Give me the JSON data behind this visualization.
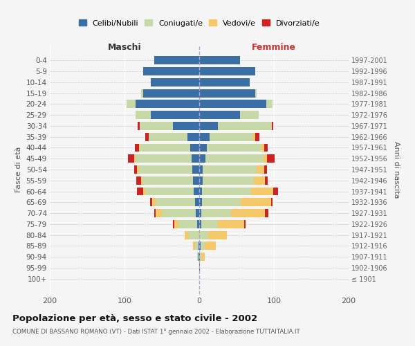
{
  "age_groups": [
    "100+",
    "95-99",
    "90-94",
    "85-89",
    "80-84",
    "75-79",
    "70-74",
    "65-69",
    "60-64",
    "55-59",
    "50-54",
    "45-49",
    "40-44",
    "35-39",
    "30-34",
    "25-29",
    "20-24",
    "15-19",
    "10-14",
    "5-9",
    "0-4"
  ],
  "birth_years": [
    "≤ 1901",
    "1902-1906",
    "1907-1911",
    "1912-1916",
    "1917-1921",
    "1922-1926",
    "1927-1931",
    "1932-1936",
    "1937-1941",
    "1942-1946",
    "1947-1951",
    "1952-1956",
    "1957-1961",
    "1962-1966",
    "1967-1971",
    "1972-1976",
    "1977-1981",
    "1982-1986",
    "1987-1991",
    "1992-1996",
    "1997-2001"
  ],
  "male": {
    "celibi": [
      0,
      0,
      1,
      1,
      0,
      3,
      5,
      6,
      7,
      8,
      9,
      10,
      12,
      16,
      35,
      65,
      85,
      75,
      65,
      75,
      60
    ],
    "coniugati": [
      0,
      0,
      2,
      5,
      14,
      25,
      45,
      52,
      65,
      68,
      72,
      75,
      68,
      52,
      45,
      20,
      12,
      3,
      0,
      0,
      0
    ],
    "vedovi": [
      0,
      0,
      0,
      2,
      5,
      5,
      8,
      5,
      3,
      2,
      2,
      2,
      1,
      0,
      0,
      0,
      0,
      0,
      0,
      0,
      0
    ],
    "divorziati": [
      0,
      0,
      0,
      0,
      0,
      2,
      2,
      3,
      8,
      6,
      4,
      8,
      5,
      4,
      2,
      0,
      0,
      0,
      0,
      0,
      0
    ]
  },
  "female": {
    "nubili": [
      0,
      1,
      1,
      2,
      0,
      3,
      3,
      4,
      4,
      5,
      5,
      8,
      10,
      14,
      25,
      55,
      90,
      75,
      68,
      75,
      55
    ],
    "coniugate": [
      0,
      0,
      2,
      5,
      12,
      22,
      40,
      52,
      65,
      68,
      72,
      78,
      72,
      58,
      72,
      25,
      8,
      2,
      0,
      0,
      0
    ],
    "vedove": [
      0,
      0,
      4,
      15,
      25,
      35,
      45,
      40,
      30,
      15,
      10,
      5,
      5,
      3,
      0,
      0,
      0,
      0,
      0,
      0,
      0
    ],
    "divorziate": [
      0,
      0,
      0,
      0,
      0,
      2,
      5,
      2,
      7,
      4,
      4,
      10,
      5,
      6,
      2,
      0,
      0,
      0,
      0,
      0,
      0
    ]
  },
  "colors": {
    "celibi": "#3a6ea5",
    "coniugati": "#c8d9a8",
    "vedovi": "#f5c96a",
    "divorziati": "#cc2222"
  },
  "xlim": 200,
  "title": "Popolazione per età, sesso e stato civile - 2002",
  "subtitle": "COMUNE DI BASSANO ROMANO (VT) - Dati ISTAT 1° gennaio 2002 - Elaborazione TUTTAITALIA.IT",
  "ylabel": "Fasce di età",
  "ylabel_right": "Anni di nascita",
  "xlabel_maschi": "Maschi",
  "xlabel_femmine": "Femmine",
  "legend_labels": [
    "Celibi/Nubili",
    "Coniugati/e",
    "Vedovi/e",
    "Divorziati/e"
  ],
  "background_color": "#f5f5f5"
}
